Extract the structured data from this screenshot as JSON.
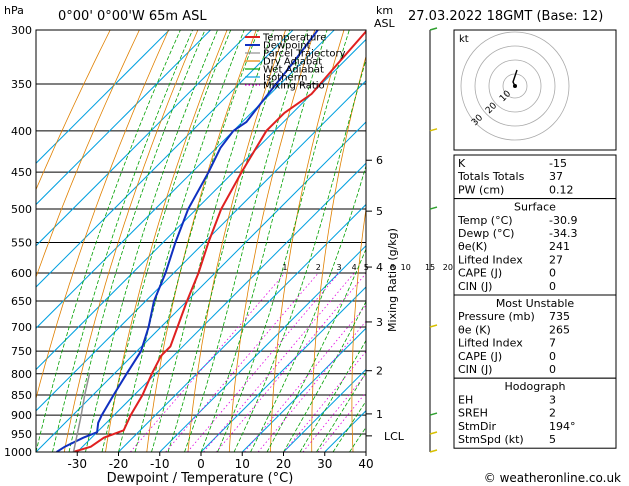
{
  "header": {
    "hpa_label": "hPa",
    "location": "0°00' 0°00'W 65m ASL",
    "km_label": "km",
    "asl_label": "ASL",
    "datetime": "27.03.2022 18GMT (Base: 12)"
  },
  "legend": [
    {
      "label": "Temperature",
      "color": "#e02020",
      "style": "solid"
    },
    {
      "label": "Dewpoint",
      "color": "#1030c0",
      "style": "solid"
    },
    {
      "label": "Parcel Trajectory",
      "color": "#909090",
      "style": "solid"
    },
    {
      "label": "Dry Adiabat",
      "color": "#e08000",
      "style": "solid"
    },
    {
      "label": "Wet Adiabat",
      "color": "#00a000",
      "style": "solid"
    },
    {
      "label": "Isotherm",
      "color": "#00a0e0",
      "style": "solid"
    },
    {
      "label": "Mixing Ratio",
      "color": "#e000e0",
      "style": "dotted"
    }
  ],
  "chart_data": {
    "type": "line",
    "xlabel": "Dewpoint / Temperature (°C)",
    "ylabel_right": "Mixing Ratio (g/kg)",
    "x_ticks": [
      -30,
      -20,
      -10,
      0,
      10,
      20,
      30,
      40
    ],
    "pressure_ticks": [
      300,
      350,
      400,
      450,
      500,
      550,
      600,
      650,
      700,
      750,
      800,
      850,
      900,
      950,
      1000
    ],
    "xlim": [
      -40,
      40
    ],
    "plim": [
      1000,
      300
    ],
    "skew": "45-degree skewed isotherms",
    "km_ticks": [
      {
        "km": "1",
        "p": 897
      },
      {
        "km": "2",
        "p": 793
      },
      {
        "km": "3",
        "p": 690
      },
      {
        "km": "4",
        "p": 590
      },
      {
        "km": "5",
        "p": 503
      },
      {
        "km": "6",
        "p": 435
      }
    ],
    "lcl": {
      "label": "LCL",
      "p": 955
    },
    "mixing_ratio_labels": [
      "1",
      "2",
      "3",
      "4",
      "5",
      "8",
      "10",
      "15",
      "20",
      "25"
    ],
    "mixing_ratio_values": [
      1,
      2,
      3,
      4,
      5,
      8,
      10,
      15,
      20,
      25
    ],
    "series": [
      {
        "name": "Temperature",
        "color": "#e02020",
        "points": [
          [
            1000,
            -31
          ],
          [
            985,
            -28
          ],
          [
            960,
            -27
          ],
          [
            940,
            -24
          ],
          [
            900,
            -26
          ],
          [
            850,
            -28
          ],
          [
            800,
            -30.9
          ],
          [
            760,
            -33
          ],
          [
            740,
            -33
          ],
          [
            700,
            -36
          ],
          [
            650,
            -40
          ],
          [
            600,
            -44
          ],
          [
            550,
            -49
          ],
          [
            500,
            -54
          ],
          [
            450,
            -58
          ],
          [
            400,
            -62
          ],
          [
            380,
            -62
          ],
          [
            360,
            -60
          ],
          [
            330,
            -61
          ],
          [
            300,
            -62
          ]
        ]
      },
      {
        "name": "Dewpoint",
        "color": "#1030c0",
        "points": [
          [
            1000,
            -35
          ],
          [
            985,
            -34.3
          ],
          [
            960,
            -32
          ],
          [
            945,
            -30
          ],
          [
            920,
            -32
          ],
          [
            900,
            -33
          ],
          [
            850,
            -35
          ],
          [
            800,
            -37
          ],
          [
            750,
            -39
          ],
          [
            700,
            -43
          ],
          [
            650,
            -48
          ],
          [
            600,
            -52
          ],
          [
            550,
            -57
          ],
          [
            500,
            -62
          ],
          [
            450,
            -66
          ],
          [
            420,
            -69
          ],
          [
            400,
            -70
          ],
          [
            390,
            -69
          ],
          [
            370,
            -70
          ],
          [
            350,
            -71
          ],
          [
            330,
            -72
          ],
          [
            300,
            -74
          ]
        ]
      },
      {
        "name": "Parcel Trajectory",
        "color": "#909090",
        "points": [
          [
            1000,
            -30.9
          ],
          [
            955,
            -34
          ],
          [
            900,
            -38
          ],
          [
            850,
            -42
          ],
          [
            800,
            -46
          ]
        ]
      }
    ]
  },
  "indices": {
    "K": "-15",
    "Totals Totals": "37",
    "PW (cm)": "0.12"
  },
  "surface": {
    "title": "Surface",
    "rows": [
      {
        "label": "Temp (°C)",
        "value": "-30.9"
      },
      {
        "label": "Dewp (°C)",
        "value": "-34.3"
      },
      {
        "label": "θe(K)",
        "value": "241"
      },
      {
        "label": "Lifted Index",
        "value": "27"
      },
      {
        "label": "CAPE (J)",
        "value": "0"
      },
      {
        "label": "CIN (J)",
        "value": "0"
      }
    ]
  },
  "most_unstable": {
    "title": "Most Unstable",
    "rows": [
      {
        "label": "Pressure (mb)",
        "value": "735"
      },
      {
        "label": "θe (K)",
        "value": "265"
      },
      {
        "label": "Lifted Index",
        "value": "7"
      },
      {
        "label": "CAPE (J)",
        "value": "0"
      },
      {
        "label": "CIN (J)",
        "value": "0"
      }
    ]
  },
  "hodograph_table": {
    "title": "Hodograph",
    "rows": [
      {
        "label": "EH",
        "value": "3"
      },
      {
        "label": "SREH",
        "value": "2"
      },
      {
        "label": "StmDir",
        "value": "194°"
      },
      {
        "label": "StmSpd (kt)",
        "value": "5"
      }
    ]
  },
  "hodograph": {
    "label": "kt",
    "ring_labels": [
      "10",
      "20",
      "30"
    ]
  },
  "footer": {
    "copyright": "© weatheronline.co.uk"
  }
}
